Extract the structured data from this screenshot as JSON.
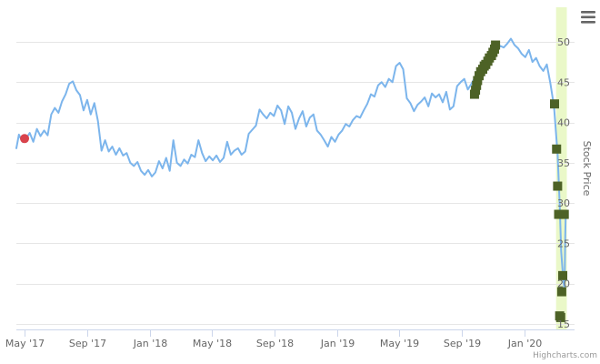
{
  "chart_data": {
    "type": "line",
    "title": "",
    "ylabel": "Stock Price",
    "xlabel": "",
    "ylim": [
      15,
      55
    ],
    "yticks": [
      15,
      20,
      25,
      30,
      35,
      40,
      45,
      50
    ],
    "yticks_labeled": [
      15,
      20,
      25,
      30,
      35,
      40,
      45,
      50
    ],
    "xlim": [
      "2017-04-15",
      "2020-04-07"
    ],
    "xticks": [
      {
        "date": "2017-05-01",
        "label": "May '17"
      },
      {
        "date": "2017-09-01",
        "label": "Sep '17"
      },
      {
        "date": "2018-01-01",
        "label": "Jan '18"
      },
      {
        "date": "2018-05-01",
        "label": "May '18"
      },
      {
        "date": "2018-09-01",
        "label": "Sep '18"
      },
      {
        "date": "2019-01-01",
        "label": "Jan '19"
      },
      {
        "date": "2019-05-01",
        "label": "May '19"
      },
      {
        "date": "2019-09-01",
        "label": "Sep '19"
      },
      {
        "date": "2020-01-01",
        "label": "Jan '20"
      }
    ],
    "grid": true,
    "highlight_band": {
      "from": "2020-03-02",
      "to": "2020-03-23",
      "color": "#eaf8c8"
    },
    "series": [
      {
        "color": "#7cb5ec",
        "points": [
          [
            "2017-04-15",
            36.8
          ],
          [
            "2017-04-20",
            38.5
          ],
          [
            "2017-04-27",
            37.6
          ],
          [
            "2017-05-04",
            38.0
          ],
          [
            "2017-05-11",
            38.7
          ],
          [
            "2017-05-18",
            37.6
          ],
          [
            "2017-05-25",
            39.2
          ],
          [
            "2017-06-01",
            38.3
          ],
          [
            "2017-06-08",
            39.0
          ],
          [
            "2017-06-15",
            38.4
          ],
          [
            "2017-06-22",
            41.0
          ],
          [
            "2017-06-29",
            41.8
          ],
          [
            "2017-07-06",
            41.2
          ],
          [
            "2017-07-13",
            42.6
          ],
          [
            "2017-07-20",
            43.5
          ],
          [
            "2017-07-27",
            44.8
          ],
          [
            "2017-08-03",
            45.1
          ],
          [
            "2017-08-10",
            44.0
          ],
          [
            "2017-08-17",
            43.4
          ],
          [
            "2017-08-24",
            41.5
          ],
          [
            "2017-08-31",
            42.8
          ],
          [
            "2017-09-07",
            41.0
          ],
          [
            "2017-09-14",
            42.4
          ],
          [
            "2017-09-21",
            40.2
          ],
          [
            "2017-09-28",
            36.5
          ],
          [
            "2017-10-05",
            37.8
          ],
          [
            "2017-10-12",
            36.4
          ],
          [
            "2017-10-19",
            37.0
          ],
          [
            "2017-10-26",
            36.0
          ],
          [
            "2017-11-02",
            36.8
          ],
          [
            "2017-11-09",
            35.9
          ],
          [
            "2017-11-16",
            36.2
          ],
          [
            "2017-11-23",
            35.0
          ],
          [
            "2017-11-30",
            34.6
          ],
          [
            "2017-12-07",
            35.1
          ],
          [
            "2017-12-14",
            34.0
          ],
          [
            "2017-12-21",
            33.5
          ],
          [
            "2017-12-28",
            34.1
          ],
          [
            "2018-01-04",
            33.3
          ],
          [
            "2018-01-11",
            33.8
          ],
          [
            "2018-01-18",
            35.2
          ],
          [
            "2018-01-25",
            34.3
          ],
          [
            "2018-02-01",
            35.6
          ],
          [
            "2018-02-08",
            34.0
          ],
          [
            "2018-02-15",
            37.8
          ],
          [
            "2018-02-22",
            35.0
          ],
          [
            "2018-03-01",
            34.6
          ],
          [
            "2018-03-08",
            35.4
          ],
          [
            "2018-03-15",
            34.9
          ],
          [
            "2018-03-22",
            36.0
          ],
          [
            "2018-03-29",
            35.7
          ],
          [
            "2018-04-05",
            37.8
          ],
          [
            "2018-04-12",
            36.2
          ],
          [
            "2018-04-19",
            35.2
          ],
          [
            "2018-04-26",
            35.8
          ],
          [
            "2018-05-03",
            35.3
          ],
          [
            "2018-05-10",
            35.9
          ],
          [
            "2018-05-17",
            35.1
          ],
          [
            "2018-05-24",
            35.6
          ],
          [
            "2018-05-31",
            37.6
          ],
          [
            "2018-06-07",
            36.0
          ],
          [
            "2018-06-14",
            36.5
          ],
          [
            "2018-06-21",
            36.8
          ],
          [
            "2018-06-28",
            36.0
          ],
          [
            "2018-07-05",
            36.4
          ],
          [
            "2018-07-12",
            38.6
          ],
          [
            "2018-07-19",
            39.1
          ],
          [
            "2018-07-26",
            39.6
          ],
          [
            "2018-08-02",
            41.6
          ],
          [
            "2018-08-09",
            41.0
          ],
          [
            "2018-08-16",
            40.5
          ],
          [
            "2018-08-23",
            41.2
          ],
          [
            "2018-08-30",
            40.8
          ],
          [
            "2018-09-06",
            42.1
          ],
          [
            "2018-09-13",
            41.5
          ],
          [
            "2018-09-20",
            39.8
          ],
          [
            "2018-09-27",
            42.0
          ],
          [
            "2018-10-04",
            41.2
          ],
          [
            "2018-10-11",
            39.2
          ],
          [
            "2018-10-18",
            40.5
          ],
          [
            "2018-10-25",
            41.4
          ],
          [
            "2018-11-01",
            39.5
          ],
          [
            "2018-11-08",
            40.6
          ],
          [
            "2018-11-15",
            41.0
          ],
          [
            "2018-11-22",
            39.0
          ],
          [
            "2018-11-29",
            38.5
          ],
          [
            "2018-12-06",
            37.8
          ],
          [
            "2018-12-13",
            37.0
          ],
          [
            "2018-12-20",
            38.2
          ],
          [
            "2018-12-27",
            37.6
          ],
          [
            "2019-01-03",
            38.5
          ],
          [
            "2019-01-10",
            39.0
          ],
          [
            "2019-01-17",
            39.8
          ],
          [
            "2019-01-24",
            39.5
          ],
          [
            "2019-01-31",
            40.3
          ],
          [
            "2019-02-07",
            40.8
          ],
          [
            "2019-02-14",
            40.6
          ],
          [
            "2019-02-21",
            41.5
          ],
          [
            "2019-02-28",
            42.3
          ],
          [
            "2019-03-07",
            43.5
          ],
          [
            "2019-03-14",
            43.2
          ],
          [
            "2019-03-21",
            44.6
          ],
          [
            "2019-03-28",
            45.0
          ],
          [
            "2019-04-04",
            44.4
          ],
          [
            "2019-04-11",
            45.4
          ],
          [
            "2019-04-18",
            45.0
          ],
          [
            "2019-04-25",
            47.0
          ],
          [
            "2019-05-02",
            47.4
          ],
          [
            "2019-05-09",
            46.6
          ],
          [
            "2019-05-16",
            43.0
          ],
          [
            "2019-05-23",
            42.4
          ],
          [
            "2019-05-30",
            41.4
          ],
          [
            "2019-06-06",
            42.2
          ],
          [
            "2019-06-13",
            42.6
          ],
          [
            "2019-06-20",
            43.1
          ],
          [
            "2019-06-27",
            42.0
          ],
          [
            "2019-07-04",
            43.6
          ],
          [
            "2019-07-11",
            43.1
          ],
          [
            "2019-07-18",
            43.5
          ],
          [
            "2019-07-25",
            42.5
          ],
          [
            "2019-08-01",
            43.8
          ],
          [
            "2019-08-08",
            41.6
          ],
          [
            "2019-08-15",
            42.0
          ],
          [
            "2019-08-22",
            44.5
          ],
          [
            "2019-08-29",
            45.0
          ],
          [
            "2019-09-05",
            45.4
          ],
          [
            "2019-09-12",
            44.1
          ],
          [
            "2019-09-19",
            44.8
          ],
          [
            "2019-09-26",
            45.6
          ],
          [
            "2019-10-03",
            46.0
          ],
          [
            "2019-10-10",
            46.8
          ],
          [
            "2019-10-17",
            47.5
          ],
          [
            "2019-10-24",
            48.2
          ],
          [
            "2019-10-31",
            48.6
          ],
          [
            "2019-11-07",
            49.0
          ],
          [
            "2019-11-14",
            49.5
          ],
          [
            "2019-11-21",
            49.3
          ],
          [
            "2019-11-28",
            49.8
          ],
          [
            "2019-12-05",
            50.4
          ],
          [
            "2019-12-12",
            49.6
          ],
          [
            "2019-12-19",
            49.2
          ],
          [
            "2019-12-26",
            48.5
          ],
          [
            "2020-01-02",
            48.1
          ],
          [
            "2020-01-09",
            49.0
          ],
          [
            "2020-01-16",
            47.5
          ],
          [
            "2020-01-23",
            48.0
          ],
          [
            "2020-01-30",
            47.0
          ],
          [
            "2020-02-06",
            46.4
          ],
          [
            "2020-02-13",
            47.2
          ],
          [
            "2020-02-20",
            44.8
          ],
          [
            "2020-02-27",
            42.0
          ],
          [
            "2020-03-05",
            36.0
          ],
          [
            "2020-03-09",
            30.0
          ],
          [
            "2020-03-12",
            24.0
          ],
          [
            "2020-03-16",
            20.5
          ],
          [
            "2020-03-18",
            19.5
          ],
          [
            "2020-03-19",
            22.0
          ],
          [
            "2020-03-20",
            26.0
          ],
          [
            "2020-03-21",
            29.0
          ]
        ]
      }
    ],
    "markers": [
      {
        "shape": "circle",
        "color": "#d9434c",
        "points": [
          [
            "2017-05-01",
            38.0
          ]
        ]
      },
      {
        "shape": "square",
        "color": "#4d6226",
        "points": [
          [
            "2019-09-25",
            43.5
          ],
          [
            "2019-09-27",
            44.0
          ],
          [
            "2019-09-29",
            44.6
          ],
          [
            "2019-10-01",
            45.2
          ],
          [
            "2019-10-04",
            45.8
          ],
          [
            "2019-10-07",
            46.3
          ],
          [
            "2019-10-11",
            46.6
          ],
          [
            "2019-10-14",
            47.0
          ],
          [
            "2019-10-17",
            47.2
          ],
          [
            "2019-10-21",
            47.6
          ],
          [
            "2019-10-24",
            48.0
          ],
          [
            "2019-10-28",
            48.3
          ],
          [
            "2019-10-31",
            48.7
          ],
          [
            "2019-11-03",
            49.1
          ],
          [
            "2019-11-05",
            49.6
          ],
          [
            "2020-02-28",
            42.3
          ],
          [
            "2020-03-03",
            36.7
          ],
          [
            "2020-03-05",
            32.1
          ],
          [
            "2020-03-07",
            28.6
          ],
          [
            "2020-03-09",
            16.0
          ],
          [
            "2020-03-11",
            15.8
          ],
          [
            "2020-03-13",
            19.0
          ],
          [
            "2020-03-15",
            21.0
          ],
          [
            "2020-03-16",
            28.6
          ],
          [
            "2020-03-18",
            28.6
          ]
        ]
      }
    ]
  },
  "credits": "Highcharts.com",
  "menu": {
    "icon": "hamburger-menu-icon"
  }
}
